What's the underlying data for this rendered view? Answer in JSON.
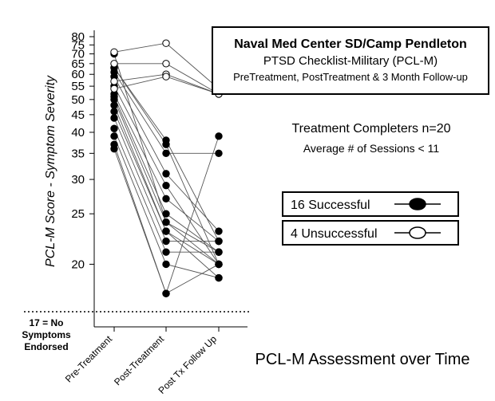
{
  "chart_data": {
    "type": "line",
    "title": "Naval Med Center SD/Camp Pendleton",
    "subtitle": "PTSD Checklist-Military (PCL-M)",
    "subtitle2": "PreTreatment, PostTreatment & 3 Month Follow-up",
    "xlabel": "PCL-M Assessment over Time",
    "ylabel": "PCL-M Score - Symptom Severity",
    "categories": [
      "Pre-Treatment",
      "Post-Treatment",
      "Post Tx Follow Up"
    ],
    "y_ticks": [
      20,
      25,
      30,
      35,
      40,
      45,
      50,
      55,
      60,
      65,
      70,
      75,
      80
    ],
    "ylim": [
      17,
      80
    ],
    "reference_line": {
      "value": 17,
      "label_line1": "17 = No",
      "label_line2": "Symptoms",
      "label_line3": "Endorsed"
    },
    "annotations": {
      "completers": "Treatment Completers n=20",
      "sessions": "Average # of Sessions < 11"
    },
    "legend": [
      {
        "label": "16 Successful",
        "marker": "filled"
      },
      {
        "label": "4 Unsuccessful",
        "marker": "open"
      }
    ],
    "series": [
      {
        "group": "successful",
        "values": [
          70,
          24,
          21
        ]
      },
      {
        "group": "successful",
        "values": [
          63,
          38,
          22
        ]
      },
      {
        "group": "successful",
        "values": [
          63,
          37,
          20
        ]
      },
      {
        "group": "successful",
        "values": [
          61,
          35,
          35
        ]
      },
      {
        "group": "successful",
        "values": [
          59,
          31,
          23
        ]
      },
      {
        "group": "successful",
        "values": [
          55,
          29,
          20
        ]
      },
      {
        "group": "successful",
        "values": [
          52,
          27,
          22
        ]
      },
      {
        "group": "successful",
        "values": [
          51,
          25,
          21
        ]
      },
      {
        "group": "successful",
        "values": [
          50,
          24,
          20
        ]
      },
      {
        "group": "successful",
        "values": [
          48,
          23,
          19
        ]
      },
      {
        "group": "successful",
        "values": [
          46,
          23,
          20
        ]
      },
      {
        "group": "successful",
        "values": [
          44,
          22,
          22
        ]
      },
      {
        "group": "successful",
        "values": [
          41,
          21,
          21
        ]
      },
      {
        "group": "successful",
        "values": [
          39,
          20,
          19
        ]
      },
      {
        "group": "successful",
        "values": [
          37,
          18,
          20
        ]
      },
      {
        "group": "successful",
        "values": [
          36,
          18,
          39
        ]
      },
      {
        "group": "unsuccessful",
        "values": [
          71,
          76,
          54
        ]
      },
      {
        "group": "unsuccessful",
        "values": [
          65,
          65,
          52
        ]
      },
      {
        "group": "unsuccessful",
        "values": [
          57,
          60,
          52
        ]
      },
      {
        "group": "unsuccessful",
        "values": [
          54,
          59,
          52
        ]
      }
    ]
  }
}
